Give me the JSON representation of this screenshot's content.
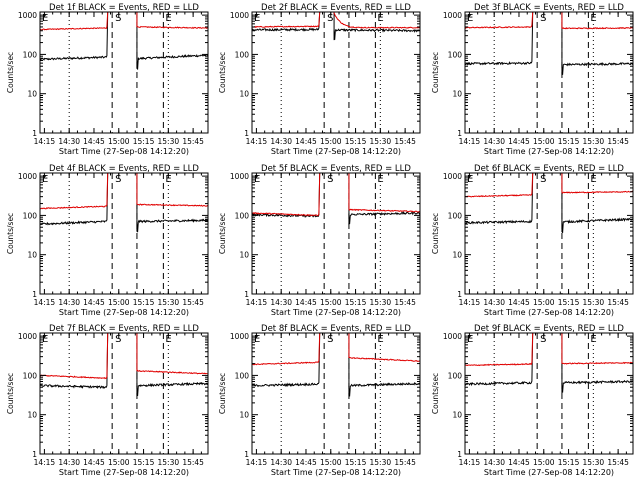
{
  "colors": {
    "events": "#000000",
    "lld": "#e00000",
    "axis": "#000000",
    "background": "#ffffff"
  },
  "common": {
    "ylabel": "Counts/sec",
    "xlabel": "Start Time (27-Sep-08 14:12:20)",
    "xtick_labels": [
      "14:15",
      "14:30",
      "14:45",
      "15:00",
      "15:15",
      "15:30",
      "15:45"
    ],
    "ytick_labels": [
      "1",
      "10",
      "100",
      "1000"
    ],
    "marker_labels": [
      "E",
      "S",
      "E"
    ]
  },
  "chart_data": [
    {
      "type": "line",
      "title": "Det 1f BLACK = Events, RED = LLD",
      "x_unit": "minutes",
      "xlim": [
        "14:12:20",
        "15:54:00"
      ],
      "ylim": [
        1,
        1200
      ],
      "y_scale": "log",
      "markers": {
        "E_start": "14:12:20",
        "S_start": "14:56:00",
        "S_end": "15:11:00",
        "E_end": "15:27:00"
      },
      "guides_dotted": [
        "14:30",
        "15:30"
      ],
      "series": [
        {
          "name": "Events",
          "color": "#000000",
          "segments": [
            {
              "from": "14:12:20",
              "to": "14:52:30",
              "level_start": 75,
              "level_end": 85
            },
            {
              "from": "15:11:00",
              "to": "15:54:00",
              "level_start": 78,
              "level_end": 95
            }
          ]
        },
        {
          "name": "LLD",
          "color": "#e00000",
          "segments": [
            {
              "from": "14:12:20",
              "to": "14:52:30",
              "level_start": 430,
              "level_end": 470
            },
            {
              "from": "15:11:00",
              "to": "15:54:00",
              "level_start": 500,
              "level_end": 470
            }
          ]
        }
      ]
    },
    {
      "type": "line",
      "title": "Det 2f BLACK = Events, RED = LLD",
      "x_unit": "minutes",
      "xlim": [
        "14:12:20",
        "15:54:00"
      ],
      "ylim": [
        1,
        1200
      ],
      "y_scale": "log",
      "markers": {
        "E_start": "14:12:20",
        "S_start": "14:56:00",
        "S_end": "15:11:00",
        "E_end": "15:27:00"
      },
      "guides_dotted": [
        "14:30",
        "15:30"
      ],
      "series": [
        {
          "name": "Events",
          "color": "#000000",
          "segments": [
            {
              "from": "14:12:20",
              "to": "14:52:30",
              "level_start": 420,
              "level_end": 430
            },
            {
              "from": "15:02:00",
              "to": "15:54:00",
              "level_start": 420,
              "level_end": 400
            }
          ]
        },
        {
          "name": "LLD",
          "color": "#e00000",
          "segments": [
            {
              "from": "14:12:20",
              "to": "14:52:30",
              "level_start": 500,
              "level_end": 520
            },
            {
              "from": "15:02:00",
              "to": "15:54:00",
              "level_start": 1100,
              "level_end": 480
            }
          ]
        }
      ]
    },
    {
      "type": "line",
      "title": "Det 3f BLACK = Events, RED = LLD",
      "x_unit": "minutes",
      "xlim": [
        "14:12:20",
        "15:54:00"
      ],
      "ylim": [
        1,
        1200
      ],
      "y_scale": "log",
      "markers": {
        "E_start": "14:12:20",
        "S_start": "14:56:00",
        "S_end": "15:11:00",
        "E_end": "15:27:00"
      },
      "guides_dotted": [
        "14:30",
        "15:30"
      ],
      "series": [
        {
          "name": "Events",
          "color": "#000000",
          "segments": [
            {
              "from": "14:12:20",
              "to": "14:52:30",
              "level_start": 58,
              "level_end": 60
            },
            {
              "from": "15:11:00",
              "to": "15:54:00",
              "level_start": 55,
              "level_end": 58
            }
          ]
        },
        {
          "name": "LLD",
          "color": "#e00000",
          "segments": [
            {
              "from": "14:12:20",
              "to": "14:52:30",
              "level_start": 480,
              "level_end": 500
            },
            {
              "from": "15:11:00",
              "to": "15:54:00",
              "level_start": 460,
              "level_end": 470
            }
          ]
        }
      ]
    },
    {
      "type": "line",
      "title": "Det 4f BLACK = Events, RED = LLD",
      "x_unit": "minutes",
      "xlim": [
        "14:12:20",
        "15:54:00"
      ],
      "ylim": [
        1,
        1200
      ],
      "y_scale": "log",
      "markers": {
        "E_start": "14:12:20",
        "S_start": "14:56:00",
        "S_end": "15:11:00",
        "E_end": "15:27:00"
      },
      "guides_dotted": [
        "14:30",
        "15:30"
      ],
      "series": [
        {
          "name": "Events",
          "color": "#000000",
          "segments": [
            {
              "from": "14:12:20",
              "to": "14:52:30",
              "level_start": 60,
              "level_end": 70
            },
            {
              "from": "15:11:00",
              "to": "15:54:00",
              "level_start": 70,
              "level_end": 75
            }
          ]
        },
        {
          "name": "LLD",
          "color": "#e00000",
          "segments": [
            {
              "from": "14:12:20",
              "to": "14:52:30",
              "level_start": 150,
              "level_end": 170
            },
            {
              "from": "15:11:00",
              "to": "15:54:00",
              "level_start": 190,
              "level_end": 175
            }
          ]
        }
      ]
    },
    {
      "type": "line",
      "title": "Det 5f BLACK = Events, RED = LLD",
      "x_unit": "minutes",
      "xlim": [
        "14:12:20",
        "15:54:00"
      ],
      "ylim": [
        1,
        1200
      ],
      "y_scale": "log",
      "markers": {
        "E_start": "14:12:20",
        "S_start": "14:56:00",
        "S_end": "15:11:00",
        "E_end": "15:27:00"
      },
      "guides_dotted": [
        "14:30",
        "15:30"
      ],
      "series": [
        {
          "name": "Events",
          "color": "#000000",
          "segments": [
            {
              "from": "14:12:20",
              "to": "14:52:30",
              "level_start": 105,
              "level_end": 95
            },
            {
              "from": "15:11:00",
              "to": "15:54:00",
              "level_start": 105,
              "level_end": 115
            }
          ]
        },
        {
          "name": "LLD",
          "color": "#e00000",
          "segments": [
            {
              "from": "14:12:20",
              "to": "14:52:30",
              "level_start": 115,
              "level_end": 100
            },
            {
              "from": "15:11:00",
              "to": "15:54:00",
              "level_start": 140,
              "level_end": 125
            }
          ]
        }
      ]
    },
    {
      "type": "line",
      "title": "Det 6f BLACK = Events, RED = LLD",
      "x_unit": "minutes",
      "xlim": [
        "14:12:20",
        "15:54:00"
      ],
      "ylim": [
        1,
        1200
      ],
      "y_scale": "log",
      "markers": {
        "E_start": "14:12:20",
        "S_start": "14:56:00",
        "S_end": "15:11:00",
        "E_end": "15:27:00"
      },
      "guides_dotted": [
        "14:30",
        "15:30"
      ],
      "series": [
        {
          "name": "Events",
          "color": "#000000",
          "segments": [
            {
              "from": "14:12:20",
              "to": "14:52:30",
              "level_start": 65,
              "level_end": 70
            },
            {
              "from": "15:11:00",
              "to": "15:54:00",
              "level_start": 68,
              "level_end": 80
            }
          ]
        },
        {
          "name": "LLD",
          "color": "#e00000",
          "segments": [
            {
              "from": "14:12:20",
              "to": "14:52:30",
              "level_start": 300,
              "level_end": 330
            },
            {
              "from": "15:11:00",
              "to": "15:54:00",
              "level_start": 380,
              "level_end": 400
            }
          ]
        }
      ]
    },
    {
      "type": "line",
      "title": "Det 7f BLACK = Events, RED = LLD",
      "x_unit": "minutes",
      "xlim": [
        "14:12:20",
        "15:54:00"
      ],
      "ylim": [
        1,
        1200
      ],
      "y_scale": "log",
      "markers": {
        "E_start": "14:12:20",
        "S_start": "14:56:00",
        "S_end": "15:11:00",
        "E_end": "15:27:00"
      },
      "guides_dotted": [
        "14:30",
        "15:30"
      ],
      "series": [
        {
          "name": "Events",
          "color": "#000000",
          "segments": [
            {
              "from": "14:12:20",
              "to": "14:52:30",
              "level_start": 55,
              "level_end": 50
            },
            {
              "from": "15:11:00",
              "to": "15:54:00",
              "level_start": 55,
              "level_end": 62
            }
          ]
        },
        {
          "name": "LLD",
          "color": "#e00000",
          "segments": [
            {
              "from": "14:12:20",
              "to": "14:52:30",
              "level_start": 100,
              "level_end": 85
            },
            {
              "from": "15:11:00",
              "to": "15:54:00",
              "level_start": 130,
              "level_end": 110
            }
          ]
        }
      ]
    },
    {
      "type": "line",
      "title": "Det 8f BLACK = Events, RED = LLD",
      "x_unit": "minutes",
      "xlim": [
        "14:12:20",
        "15:54:00"
      ],
      "ylim": [
        1,
        1200
      ],
      "y_scale": "log",
      "markers": {
        "E_start": "14:12:20",
        "S_start": "14:56:00",
        "S_end": "15:11:00",
        "E_end": "15:27:00"
      },
      "guides_dotted": [
        "14:30",
        "15:30"
      ],
      "series": [
        {
          "name": "Events",
          "color": "#000000",
          "segments": [
            {
              "from": "14:12:20",
              "to": "14:52:30",
              "level_start": 55,
              "level_end": 60
            },
            {
              "from": "15:11:00",
              "to": "15:54:00",
              "level_start": 55,
              "level_end": 62
            }
          ]
        },
        {
          "name": "LLD",
          "color": "#e00000",
          "segments": [
            {
              "from": "14:12:20",
              "to": "14:52:30",
              "level_start": 190,
              "level_end": 215
            },
            {
              "from": "15:11:00",
              "to": "15:54:00",
              "level_start": 280,
              "level_end": 230
            }
          ]
        }
      ]
    },
    {
      "type": "line",
      "title": "Det 9f BLACK = Events, RED = LLD",
      "x_unit": "minutes",
      "xlim": [
        "14:12:20",
        "15:54:00"
      ],
      "ylim": [
        1,
        1200
      ],
      "y_scale": "log",
      "markers": {
        "E_start": "14:12:20",
        "S_start": "14:56:00",
        "S_end": "15:11:00",
        "E_end": "15:27:00"
      },
      "guides_dotted": [
        "14:30",
        "15:30"
      ],
      "series": [
        {
          "name": "Events",
          "color": "#000000",
          "segments": [
            {
              "from": "14:12:20",
              "to": "14:52:30",
              "level_start": 60,
              "level_end": 65
            },
            {
              "from": "15:11:00",
              "to": "15:54:00",
              "level_start": 65,
              "level_end": 70
            }
          ]
        },
        {
          "name": "LLD",
          "color": "#e00000",
          "segments": [
            {
              "from": "14:12:20",
              "to": "14:52:30",
              "level_start": 180,
              "level_end": 195
            },
            {
              "from": "15:11:00",
              "to": "15:54:00",
              "level_start": 200,
              "level_end": 210
            }
          ]
        }
      ]
    }
  ]
}
